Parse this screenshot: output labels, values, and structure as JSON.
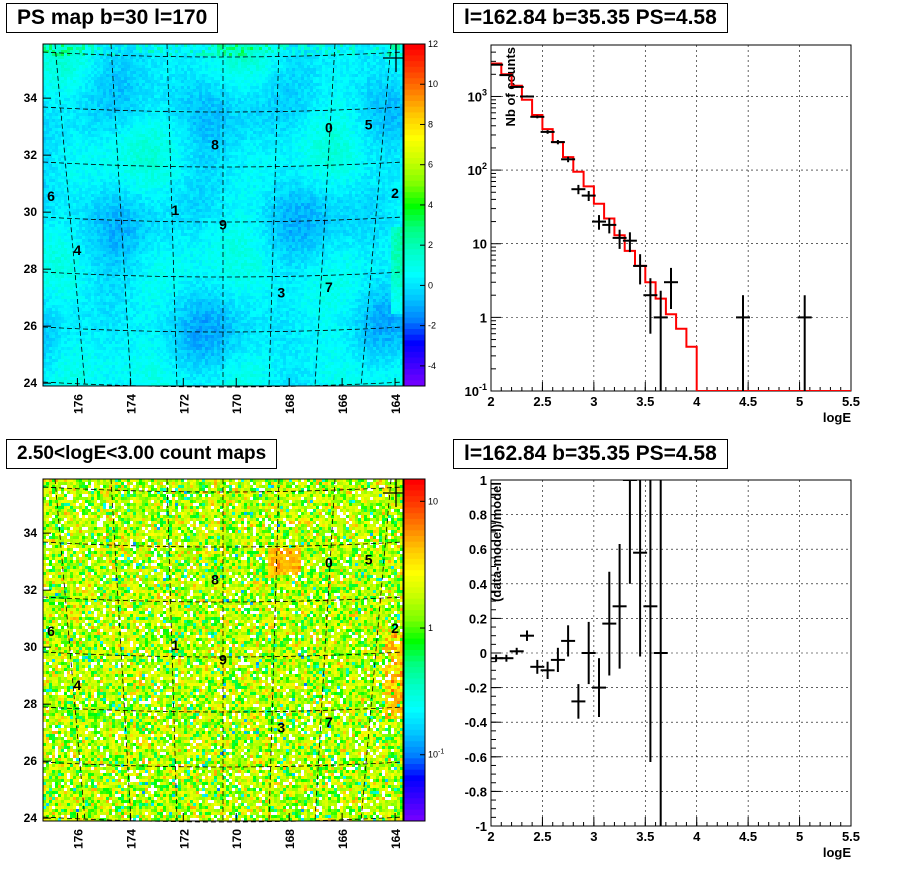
{
  "chart_data": [
    {
      "type": "heatmap",
      "title": "PS map b=30 l=170",
      "x_ticks": [
        "176",
        "174",
        "172",
        "170",
        "168",
        "166",
        "164"
      ],
      "x_tick_values": [
        176,
        174,
        172,
        170,
        168,
        166,
        164
      ],
      "xlim": [
        177.3,
        163.7
      ],
      "y_ticks": [
        "24",
        "26",
        "28",
        "30",
        "32",
        "34"
      ],
      "y_tick_values": [
        24,
        26,
        28,
        30,
        32,
        34
      ],
      "ylim": [
        23.9,
        35.9
      ],
      "colorbar_ticks": [
        "12",
        "10",
        "8",
        "6",
        "4",
        "2",
        "0",
        "-2",
        "-4"
      ],
      "colorbar_values": [
        12,
        10,
        8,
        6,
        4,
        2,
        0,
        -2,
        -4
      ],
      "colorbar_range": [
        -5,
        12
      ],
      "sources": [
        {
          "label": "0",
          "x": 166.5,
          "y": 32.8
        },
        {
          "label": "5",
          "x": 165.0,
          "y": 32.9
        },
        {
          "label": "8",
          "x": 170.8,
          "y": 32.2
        },
        {
          "label": "2",
          "x": 163.7,
          "y": 30.5
        },
        {
          "label": "6",
          "x": 177.3,
          "y": 30.4
        },
        {
          "label": "1",
          "x": 172.3,
          "y": 29.9
        },
        {
          "label": "9",
          "x": 170.5,
          "y": 29.4
        },
        {
          "label": "4",
          "x": 176.0,
          "y": 28.5
        },
        {
          "label": "3",
          "x": 168.3,
          "y": 27.0
        },
        {
          "label": "7",
          "x": 166.5,
          "y": 27.2
        }
      ]
    },
    {
      "type": "line",
      "title": "l=162.84 b=35.35 PS=4.58",
      "xlabel": "logE",
      "ylabel": "Nb of counts",
      "xlim": [
        2,
        5.5
      ],
      "ylim": [
        0.1,
        5000
      ],
      "log_y": true,
      "grid": true,
      "x_ticks": [
        "2",
        "2.5",
        "3",
        "3.5",
        "4",
        "4.5",
        "5",
        "5.5"
      ],
      "y_ticks": [
        "10^-1",
        "1",
        "10",
        "10^2",
        "10^3"
      ],
      "series": [
        {
          "name": "",
          "style": "step",
          "color": "#ff0000",
          "x": [
            2.0,
            2.1,
            2.2,
            2.3,
            2.4,
            2.5,
            2.6,
            2.7,
            2.8,
            2.9,
            3.0,
            3.1,
            3.2,
            3.3,
            3.4,
            3.5,
            3.6,
            3.7,
            3.8,
            3.9,
            4.0,
            5.5
          ],
          "values": [
            2800,
            2000,
            1400,
            900,
            560,
            360,
            240,
            150,
            95,
            60,
            35,
            22,
            13,
            8,
            5,
            3,
            1.8,
            1.1,
            0.7,
            0.4,
            0.1,
            0.1
          ]
        },
        {
          "name": "",
          "style": "errorbar",
          "color": "#000000",
          "x": [
            2.05,
            2.15,
            2.25,
            2.35,
            2.45,
            2.55,
            2.65,
            2.75,
            2.85,
            2.95,
            3.05,
            3.15,
            3.25,
            3.35,
            3.45,
            3.55,
            3.65,
            3.75,
            4.45,
            5.05
          ],
          "values": [
            2700,
            1950,
            1350,
            1000,
            530,
            330,
            240,
            140,
            55,
            45,
            20,
            18,
            12,
            11,
            5,
            2,
            1,
            3,
            1,
            1
          ],
          "errors_low": [
            55,
            45,
            40,
            33,
            24,
            19,
            16,
            12,
            8,
            7,
            4.5,
            4.2,
            3.5,
            3.3,
            2.2,
            1.4,
            0.99,
            1.7,
            0.99,
            0.99
          ],
          "errors_high": [
            55,
            45,
            40,
            33,
            24,
            19,
            16,
            12,
            8,
            7,
            4.5,
            4.2,
            3.5,
            3.3,
            2.2,
            1.4,
            1.3,
            1.7,
            1.0,
            1.0
          ]
        }
      ]
    },
    {
      "type": "heatmap",
      "title": "2.50<logE<3.00 count maps",
      "x_ticks": [
        "176",
        "174",
        "172",
        "170",
        "168",
        "166",
        "164"
      ],
      "x_tick_values": [
        176,
        174,
        172,
        170,
        168,
        166,
        164
      ],
      "xlim": [
        177.3,
        163.7
      ],
      "y_ticks": [
        "24",
        "26",
        "28",
        "30",
        "32",
        "34"
      ],
      "y_tick_values": [
        24,
        26,
        28,
        30,
        32,
        34
      ],
      "ylim": [
        23.9,
        35.9
      ],
      "log_colorbar": true,
      "colorbar_ticks": [
        "10",
        "1",
        "10^-1"
      ],
      "colorbar_values": [
        10,
        1,
        0.1
      ],
      "colorbar_range": [
        0.03,
        15
      ],
      "sources": [
        {
          "label": "0",
          "x": 166.5,
          "y": 32.8
        },
        {
          "label": "5",
          "x": 165.0,
          "y": 32.9
        },
        {
          "label": "8",
          "x": 170.8,
          "y": 32.2
        },
        {
          "label": "2",
          "x": 163.7,
          "y": 30.5
        },
        {
          "label": "6",
          "x": 177.3,
          "y": 30.4
        },
        {
          "label": "1",
          "x": 172.3,
          "y": 29.9
        },
        {
          "label": "9",
          "x": 170.5,
          "y": 29.4
        },
        {
          "label": "4",
          "x": 176.0,
          "y": 28.5
        },
        {
          "label": "3",
          "x": 168.3,
          "y": 27.0
        },
        {
          "label": "7",
          "x": 166.5,
          "y": 27.2
        }
      ]
    },
    {
      "type": "scatter",
      "title": "l=162.84 b=35.35 PS=4.58",
      "xlabel": "logE",
      "ylabel": "(data-model)/model",
      "xlim": [
        2,
        5.5
      ],
      "ylim": [
        -1,
        1
      ],
      "grid": true,
      "x_ticks": [
        "2",
        "2.5",
        "3",
        "3.5",
        "4",
        "4.5",
        "5",
        "5.5"
      ],
      "y_ticks": [
        "-1",
        "-0.8",
        "-0.6",
        "-0.4",
        "-0.2",
        "0",
        "0.2",
        "0.4",
        "0.6",
        "0.8",
        "1"
      ],
      "series": [
        {
          "name": "",
          "style": "errorbar",
          "color": "#000000",
          "x": [
            2.05,
            2.15,
            2.25,
            2.35,
            2.45,
            2.55,
            2.65,
            2.75,
            2.85,
            2.95,
            3.05,
            3.15,
            3.25,
            3.35,
            3.45,
            3.55,
            3.65
          ],
          "values": [
            -0.03,
            -0.03,
            0.01,
            0.1,
            -0.08,
            -0.1,
            -0.04,
            0.07,
            -0.28,
            0.0,
            -0.2,
            0.17,
            0.27,
            1.0,
            0.58,
            0.27,
            0.0
          ],
          "errors": [
            0.02,
            0.02,
            0.02,
            0.03,
            0.04,
            0.05,
            0.07,
            0.09,
            0.1,
            0.18,
            0.17,
            0.3,
            0.36,
            0.6,
            0.6,
            0.9,
            1.0
          ]
        }
      ]
    }
  ]
}
